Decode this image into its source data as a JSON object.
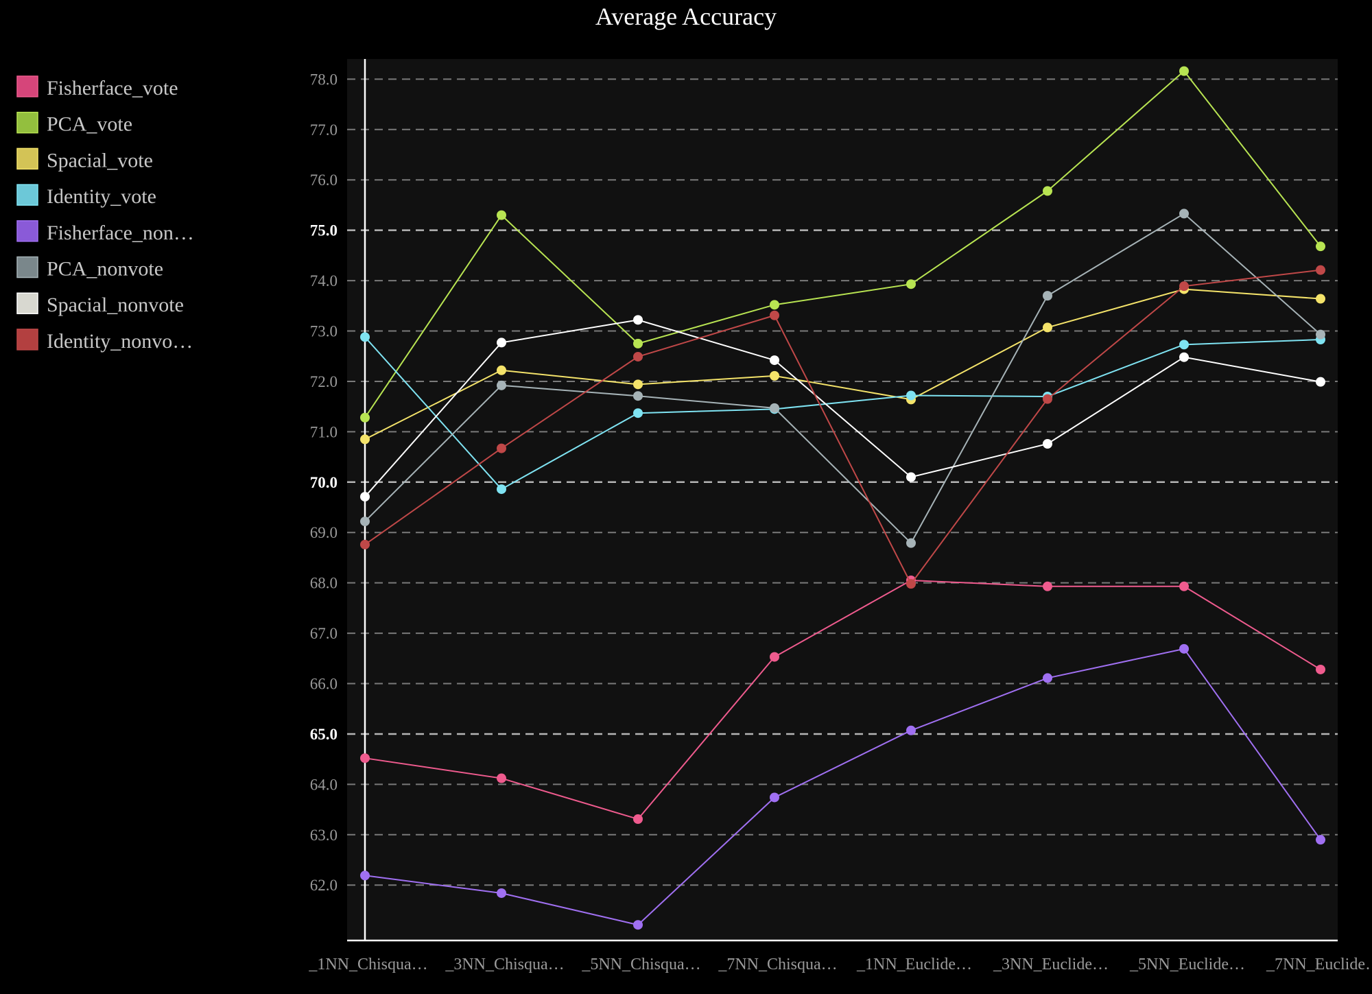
{
  "chart_data": {
    "type": "line",
    "title": "Average Accuracy",
    "xlabel": "",
    "ylabel": "",
    "ylim": [
      60.9,
      78.4
    ],
    "y_ticks": [
      "62.0",
      "63.0",
      "64.0",
      "65.0",
      "66.0",
      "67.0",
      "68.0",
      "69.0",
      "70.0",
      "71.0",
      "72.0",
      "73.0",
      "74.0",
      "75.0",
      "76.0",
      "77.0",
      "78.0"
    ],
    "y_tick_values": [
      62,
      63,
      64,
      65,
      66,
      67,
      68,
      69,
      70,
      71,
      72,
      73,
      74,
      75,
      76,
      77,
      78
    ],
    "y_major_ticks": [
      65,
      70,
      75
    ],
    "grid": true,
    "legend_position": "left",
    "categories": [
      "_1NN_Chisqua…",
      "_3NN_Chisqua…",
      "_5NN_Chisqua…",
      "_7NN_Chisqua…",
      "_1NN_Euclide…",
      "_3NN_Euclide…",
      "_5NN_Euclide…",
      "_7NN_Euclide…"
    ],
    "series": [
      {
        "name": "Fisherface_vote",
        "legend_label": "Fisherface_vote",
        "color": "#ef5b8e",
        "swatch": "#d6457a",
        "values": [
          64.52,
          64.12,
          63.31,
          66.53,
          68.05,
          67.93,
          67.93,
          66.28
        ]
      },
      {
        "name": "PCA_vote",
        "legend_label": "PCA_vote",
        "color": "#b8e452",
        "swatch": "#93bf3e",
        "values": [
          71.28,
          75.3,
          72.75,
          73.52,
          73.93,
          75.78,
          78.16,
          74.68
        ]
      },
      {
        "name": "Spacial_vote",
        "legend_label": "Spacial_vote",
        "color": "#f4e36a",
        "swatch": "#d3c356",
        "values": [
          70.85,
          72.22,
          71.94,
          72.11,
          71.64,
          73.07,
          73.83,
          73.64
        ]
      },
      {
        "name": "Identity_vote",
        "legend_label": "Identity_vote",
        "color": "#7fe3f2",
        "swatch": "#6cc8d8",
        "values": [
          72.88,
          69.86,
          71.37,
          71.45,
          71.72,
          71.7,
          72.73,
          72.83
        ]
      },
      {
        "name": "Fisherface_nonvote",
        "legend_label": "Fisherface_non…",
        "color": "#a070f2",
        "swatch": "#8a5ad8",
        "values": [
          62.19,
          61.84,
          61.21,
          63.74,
          65.07,
          66.11,
          66.69,
          62.9
        ]
      },
      {
        "name": "PCA_nonvote",
        "legend_label": "PCA_nonvote",
        "color": "#a6b3b7",
        "swatch": "#7a878b",
        "values": [
          69.22,
          71.92,
          71.71,
          71.47,
          68.79,
          73.7,
          75.33,
          72.93
        ]
      },
      {
        "name": "Spacial_nonvote",
        "legend_label": "Spacial_nonvote",
        "color": "#ffffff",
        "swatch": "#d8d8d0",
        "values": [
          69.71,
          72.77,
          73.22,
          72.42,
          70.1,
          70.76,
          72.48,
          71.99
        ]
      },
      {
        "name": "Identity_nonvote",
        "legend_label": "Identity_nonvo…",
        "color": "#c04848",
        "swatch": "#b34040",
        "values": [
          68.76,
          70.67,
          72.49,
          73.31,
          67.98,
          71.65,
          73.89,
          74.21
        ]
      }
    ]
  },
  "colors": {
    "background": "#000000",
    "plot_background": "#111111",
    "axis": "#ffffff"
  }
}
